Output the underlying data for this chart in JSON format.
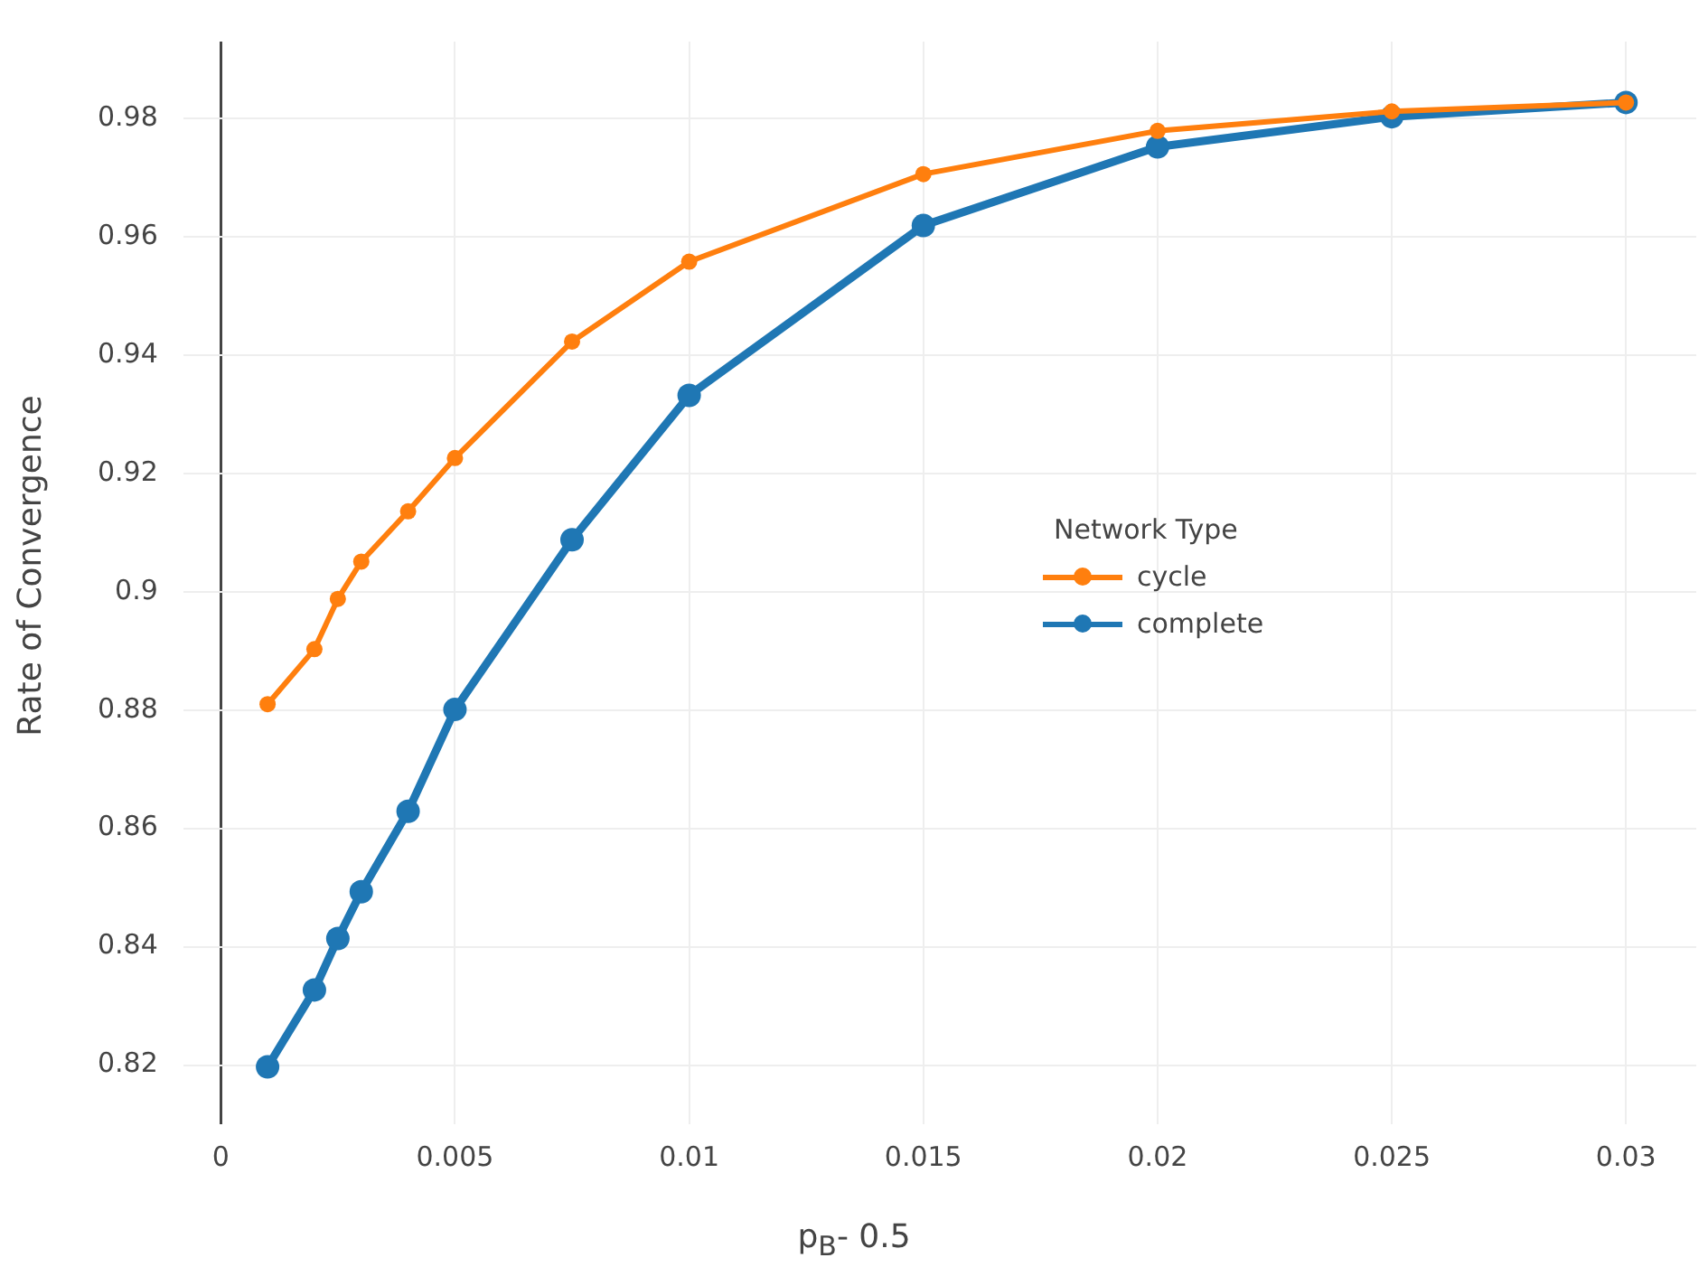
{
  "chart_data": {
    "type": "line",
    "xlabel": "p$_{B}$- 0.5",
    "ylabel": "Rate of Convergence",
    "legend_title": "Network Type",
    "legend": "right",
    "grid": true,
    "marker": "circle",
    "line_style": "solid",
    "xlim": [
      -0.0008,
      0.0315
    ],
    "xticks": [
      0,
      0.005,
      0.01,
      0.015,
      0.02,
      0.025,
      0.03
    ],
    "ylim": [
      0.81,
      0.993
    ],
    "yticks": [
      0.82,
      0.84,
      0.86,
      0.88,
      0.9,
      0.92,
      0.94,
      0.96,
      0.98
    ],
    "x": [
      0.001,
      0.002,
      0.0025,
      0.003,
      0.004,
      0.005,
      0.0075,
      0.01,
      0.015,
      0.02,
      0.025,
      0.03
    ],
    "series": [
      {
        "name": "cycle",
        "color": "#ff7f0e",
        "values": [
          0.881,
          0.8903,
          0.8988,
          0.9051,
          0.9136,
          0.9226,
          0.9423,
          0.9558,
          0.9706,
          0.9779,
          0.9812,
          0.9827
        ]
      },
      {
        "name": "complete",
        "color": "#1f77b4",
        "values": [
          0.8197,
          0.8327,
          0.8414,
          0.8493,
          0.8629,
          0.8801,
          0.9088,
          0.9332,
          0.9619,
          0.9752,
          0.9803,
          0.9827
        ]
      }
    ]
  }
}
